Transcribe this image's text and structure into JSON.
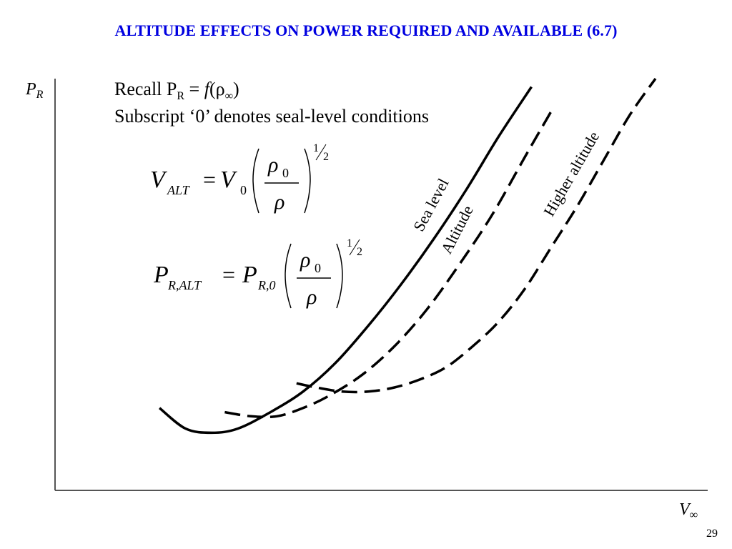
{
  "slide": {
    "title": "ALTITUDE EFFECTS ON POWER REQUIRED AND AVAILABLE (6.7)",
    "note_recall_prefix": "Recall P",
    "note_recall_sub": "R",
    "note_recall_eq": " = ",
    "note_recall_func": "f",
    "note_recall_open": "(ρ",
    "note_recall_inf": "∞",
    "note_recall_close": ")",
    "note_subscript": "Subscript ‘0’ denotes seal-level conditions",
    "page_number": "29"
  },
  "equations": {
    "v_alt": {
      "lhs_main": "V",
      "lhs_sub": "ALT",
      "equals": "=",
      "rhs_main": "V",
      "rhs_sub": "0",
      "num_main": "ρ",
      "num_sub": "0",
      "den": "ρ",
      "exp_num": "1",
      "exp_den": "2"
    },
    "p_alt": {
      "lhs_main": "P",
      "lhs_sub": "R,ALT",
      "equals": "=",
      "rhs_main": "P",
      "rhs_sub": "R,0",
      "num_main": "ρ",
      "num_sub": "0",
      "den": "ρ",
      "exp_num": "1",
      "exp_den": "2"
    }
  },
  "chart_data": {
    "type": "line",
    "xlabel": "V∞",
    "ylabel": "PR",
    "xlabel_main": "V",
    "xlabel_sub": "∞",
    "ylabel_main": "P",
    "ylabel_sub": "R",
    "xlim": [
      0,
      100
    ],
    "ylim": [
      0,
      100
    ],
    "grid": false,
    "legend": "none",
    "series": [
      {
        "name": "Sea level",
        "style": "solid",
        "label_angle": -62,
        "x": [
          16,
          20,
          24,
          28,
          33,
          38,
          43,
          48,
          53,
          58,
          63,
          68,
          73
        ],
        "y": [
          20,
          15,
          14,
          15,
          19,
          24,
          31,
          40,
          50,
          61,
          73,
          86,
          98
        ]
      },
      {
        "name": "Altitude",
        "style": "dashed",
        "label_angle": -63,
        "x": [
          26,
          30,
          34,
          38,
          42,
          47,
          52,
          57,
          62,
          67,
          72,
          76
        ],
        "y": [
          19,
          18,
          18,
          20,
          23,
          28,
          35,
          44,
          55,
          67,
          81,
          92
        ]
      },
      {
        "name": "Higher altitude",
        "style": "dashed",
        "label_angle": -60,
        "x": [
          37,
          40,
          44,
          48,
          52,
          56,
          60,
          64,
          68,
          72,
          76,
          80,
          84,
          88,
          92
        ],
        "y": [
          26,
          25,
          24,
          24,
          25,
          27,
          30,
          35,
          41,
          49,
          59,
          69,
          80,
          91,
          100
        ]
      }
    ]
  }
}
